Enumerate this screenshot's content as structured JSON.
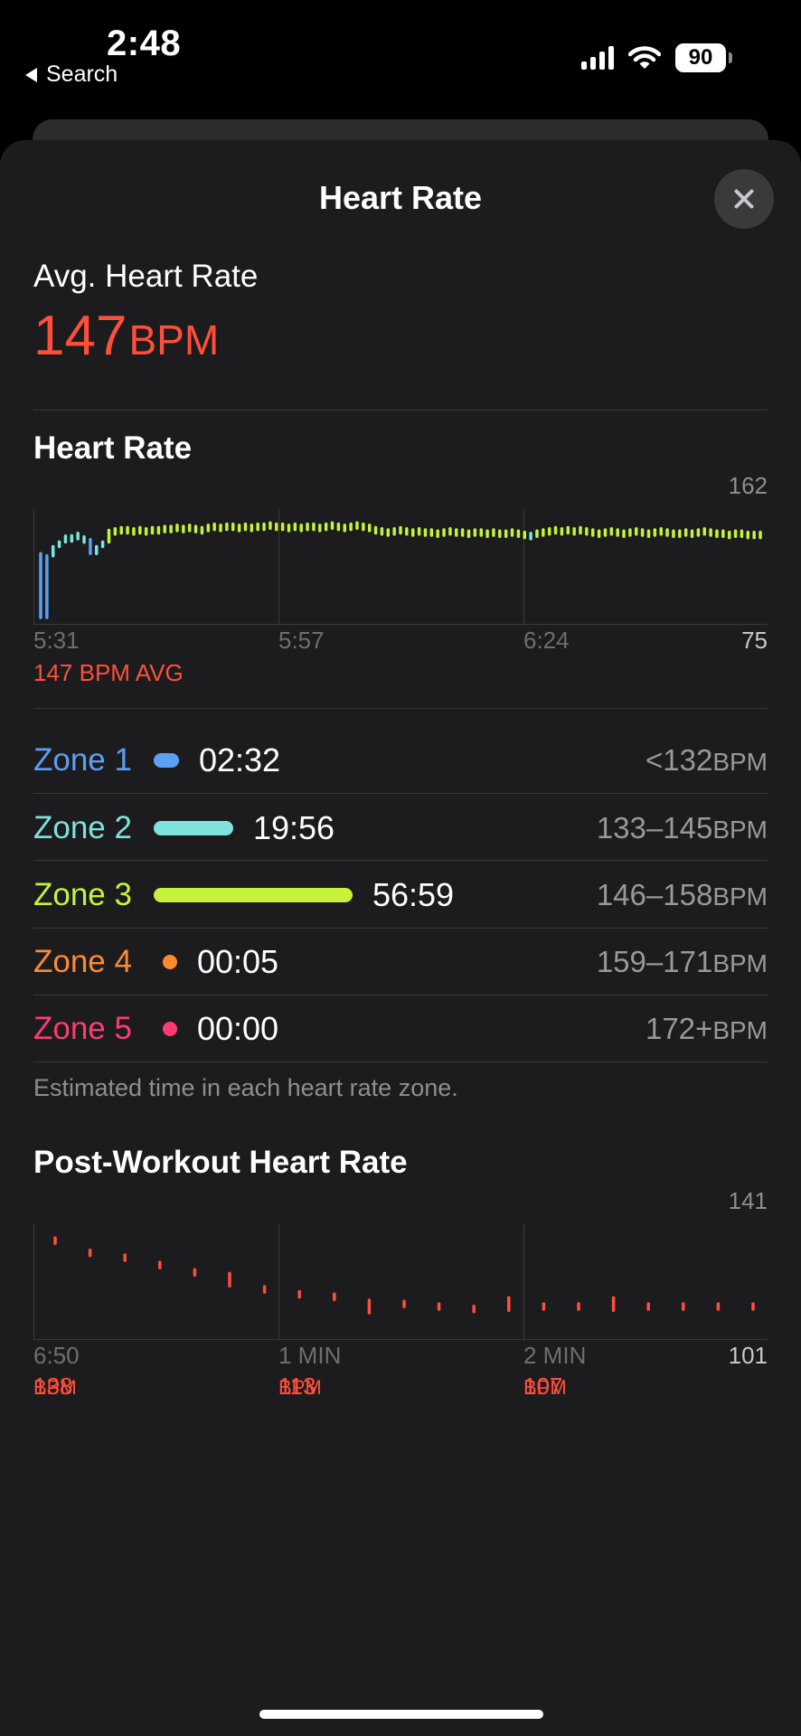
{
  "status_bar": {
    "time": "2:48",
    "back_label": "Search",
    "battery": "90",
    "icons": [
      "signal-icon",
      "wifi-icon",
      "battery-icon"
    ]
  },
  "sheet": {
    "title": "Heart Rate",
    "close_icon": "close-icon"
  },
  "summary": {
    "label": "Avg. Heart Rate",
    "value": "147",
    "unit": "BPM"
  },
  "hr_chart": {
    "title": "Heart Rate",
    "y_max_label": "162",
    "y_min_label": "75",
    "x_labels": [
      "5:31",
      "5:57",
      "6:24"
    ],
    "avg_note": "147 BPM AVG"
  },
  "zones": {
    "items": [
      {
        "name": "Zone 1",
        "time": "02:32",
        "range": "<132",
        "unit": "BPM",
        "color": "#5aa0f5",
        "fraction": 0.032
      },
      {
        "name": "Zone 2",
        "time": "19:56",
        "range": "133–145",
        "unit": "BPM",
        "color": "#7ee3dc",
        "fraction": 0.4
      },
      {
        "name": "Zone 3",
        "time": "56:59",
        "range": "146–158",
        "unit": "BPM",
        "color": "#c6f23a",
        "fraction": 1.0
      },
      {
        "name": "Zone 4",
        "time": "00:05",
        "range": "159–171",
        "unit": "BPM",
        "color": "#ff8a30",
        "fraction": 0.001
      },
      {
        "name": "Zone 5",
        "time": "00:00",
        "range": "172+",
        "unit": "BPM",
        "color": "#ff3b70",
        "fraction": 0.0
      }
    ],
    "footnote": "Estimated time in each heart rate zone."
  },
  "post_chart": {
    "title": "Post-Workout Heart Rate",
    "y_max_label": "141",
    "y_min_label": "101",
    "x_labels": [
      "6:50",
      "1 MIN",
      "2 MIN"
    ],
    "values": [
      {
        "value": "138",
        "unit": "BPM"
      },
      {
        "value": "113",
        "unit": "BPM"
      },
      {
        "value": "107",
        "unit": "BPM"
      }
    ]
  },
  "chart_data": [
    {
      "type": "scatter",
      "title": "Heart Rate",
      "xlabel": "",
      "ylabel": "",
      "ylim": [
        75,
        162
      ],
      "x_ticks": [
        "5:31",
        "5:57",
        "6:24"
      ],
      "grid": true,
      "values": [
        75,
        128,
        136,
        140,
        145,
        143,
        145,
        142,
        130,
        136,
        140,
        150,
        149,
        150,
        150,
        149,
        150,
        149,
        150,
        150,
        151,
        151,
        152,
        151,
        152,
        151,
        150,
        152,
        153,
        152,
        153,
        153,
        152,
        153,
        152,
        153,
        153,
        154,
        153,
        153,
        152,
        153,
        152,
        153,
        153,
        152,
        153,
        154,
        153,
        152,
        153,
        154,
        153,
        152,
        150,
        149,
        148,
        149,
        150,
        149,
        148,
        149,
        148,
        148,
        147,
        148,
        149,
        148,
        148,
        147,
        148,
        148,
        147,
        148,
        147,
        147,
        148,
        147,
        146,
        145,
        147,
        148,
        149,
        150,
        149,
        150,
        149,
        150,
        149,
        148,
        147,
        148,
        149,
        148,
        147,
        148,
        149,
        148,
        147,
        148,
        149,
        148,
        147,
        147,
        148,
        147,
        148,
        149,
        148,
        147,
        147,
        146,
        147,
        147,
        146,
        146,
        146
      ],
      "avg": 147
    },
    {
      "type": "scatter",
      "title": "Post-Workout Heart Rate",
      "xlabel": "",
      "ylabel": "",
      "ylim": [
        101,
        141
      ],
      "x_ticks": [
        "6:50",
        "1 MIN",
        "2 MIN"
      ],
      "grid": true,
      "values": [
        138,
        133,
        131,
        128,
        125,
        122,
        118,
        116,
        115,
        111,
        112,
        111,
        110,
        112,
        111,
        111,
        112,
        111,
        111,
        111,
        111
      ]
    }
  ]
}
